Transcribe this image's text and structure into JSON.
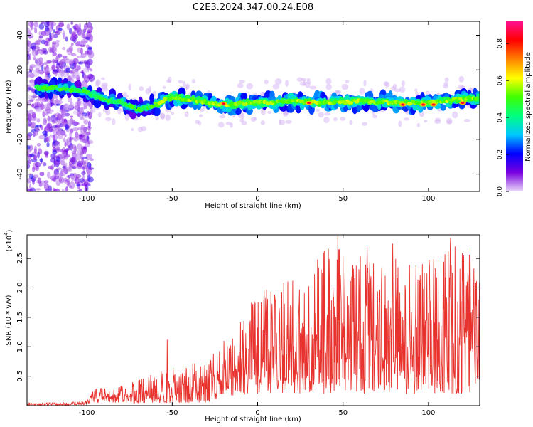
{
  "title": "C2E3.2024.347.00.24.E08",
  "chart_data": [
    {
      "type": "heatmap",
      "xlabel": "Height of straight line (km)",
      "ylabel": "Frequency (Hz)",
      "xlim": [
        -135,
        130
      ],
      "ylim": [
        -50,
        48
      ],
      "x_ticks": [
        -100,
        -50,
        0,
        50,
        100
      ],
      "y_ticks": [
        -40,
        -20,
        0,
        20,
        40
      ],
      "colorbar": {
        "label": "Normalized spectral amplitude",
        "range": [
          0.0,
          0.92
        ],
        "ticks": [
          0.0,
          0.2,
          0.4,
          0.6,
          0.8
        ],
        "tick_labels": [
          "0.0",
          "0.2",
          "0.4",
          "0.6",
          "0.8"
        ],
        "colormap": [
          "#e8d8f8",
          "#7a00e0",
          "#0000ff",
          "#00c8ff",
          "#00ff80",
          "#40ff00",
          "#ffff00",
          "#ff8000",
          "#ff0000",
          "#ff1090"
        ]
      },
      "ridge": [
        {
          "x": -135,
          "f": 10
        },
        {
          "x": -110,
          "f": 9
        },
        {
          "x": -100,
          "f": 7
        },
        {
          "x": -90,
          "f": 3
        },
        {
          "x": -80,
          "f": 1
        },
        {
          "x": -70,
          "f": -3
        },
        {
          "x": -60,
          "f": 0
        },
        {
          "x": -50,
          "f": 4
        },
        {
          "x": -40,
          "f": 3
        },
        {
          "x": -30,
          "f": 1
        },
        {
          "x": -20,
          "f": 0
        },
        {
          "x": 0,
          "f": 1
        },
        {
          "x": 20,
          "f": 2
        },
        {
          "x": 40,
          "f": 1
        },
        {
          "x": 60,
          "f": 2
        },
        {
          "x": 80,
          "f": 1
        },
        {
          "x": 100,
          "f": 1
        },
        {
          "x": 115,
          "f": 3
        },
        {
          "x": 130,
          "f": 4
        }
      ],
      "peaks": [
        {
          "x": -20,
          "f": 0.5
        },
        {
          "x": 30,
          "f": 1
        },
        {
          "x": 85,
          "f": 0
        },
        {
          "x": 97,
          "f": 0
        },
        {
          "x": 103,
          "f": 0
        },
        {
          "x": 120,
          "f": 1
        }
      ],
      "noisy_region_end_x": -97
    },
    {
      "type": "line",
      "xlabel": "Height of straight line (km)",
      "ylabel": "SNR (10 * v/v)",
      "y_multiplier": "(x10",
      "y_multiplier_exp": "4",
      "xlim": [
        -135,
        130
      ],
      "ylim": [
        0,
        2.9
      ],
      "x_ticks": [
        -100,
        -50,
        0,
        50,
        100
      ],
      "y_ticks": [
        0.5,
        1.0,
        1.5,
        2.0,
        2.5
      ],
      "y_tick_labels": [
        "0.5",
        "1.0",
        "1.5",
        "2.0",
        "2.5"
      ],
      "series": [
        {
          "color": "#e8322d",
          "envelope": [
            {
              "x": -135,
              "lo": 0.01,
              "hi": 0.04
            },
            {
              "x": -110,
              "lo": 0.01,
              "hi": 0.06
            },
            {
              "x": -100,
              "lo": 0.02,
              "hi": 0.08
            },
            {
              "x": -95,
              "lo": 0.05,
              "hi": 0.3
            },
            {
              "x": -80,
              "lo": 0.05,
              "hi": 0.35
            },
            {
              "x": -70,
              "lo": 0.05,
              "hi": 0.45
            },
            {
              "x": -55,
              "lo": 0.05,
              "hi": 0.6
            },
            {
              "x": -40,
              "lo": 0.05,
              "hi": 0.75
            },
            {
              "x": -30,
              "lo": 0.05,
              "hi": 0.75
            },
            {
              "x": -20,
              "lo": 0.15,
              "hi": 1.1
            },
            {
              "x": 0,
              "lo": 0.2,
              "hi": 1.9
            },
            {
              "x": 20,
              "lo": 0.2,
              "hi": 2.2
            },
            {
              "x": 40,
              "lo": 0.2,
              "hi": 2.7
            },
            {
              "x": 60,
              "lo": 0.2,
              "hi": 2.6
            },
            {
              "x": 80,
              "lo": 0.2,
              "hi": 2.5
            },
            {
              "x": 100,
              "lo": 0.2,
              "hi": 2.5
            },
            {
              "x": 115,
              "lo": 0.2,
              "hi": 2.8
            },
            {
              "x": 130,
              "lo": 0.2,
              "hi": 2.6
            }
          ],
          "spikes": [
            {
              "x": -53,
              "y": 1.12
            },
            {
              "x": 47,
              "y": 2.88
            },
            {
              "x": 113,
              "y": 2.85
            },
            {
              "x": 64,
              "y": 2.72
            },
            {
              "x": 79,
              "y": 2.75
            }
          ]
        }
      ]
    }
  ]
}
